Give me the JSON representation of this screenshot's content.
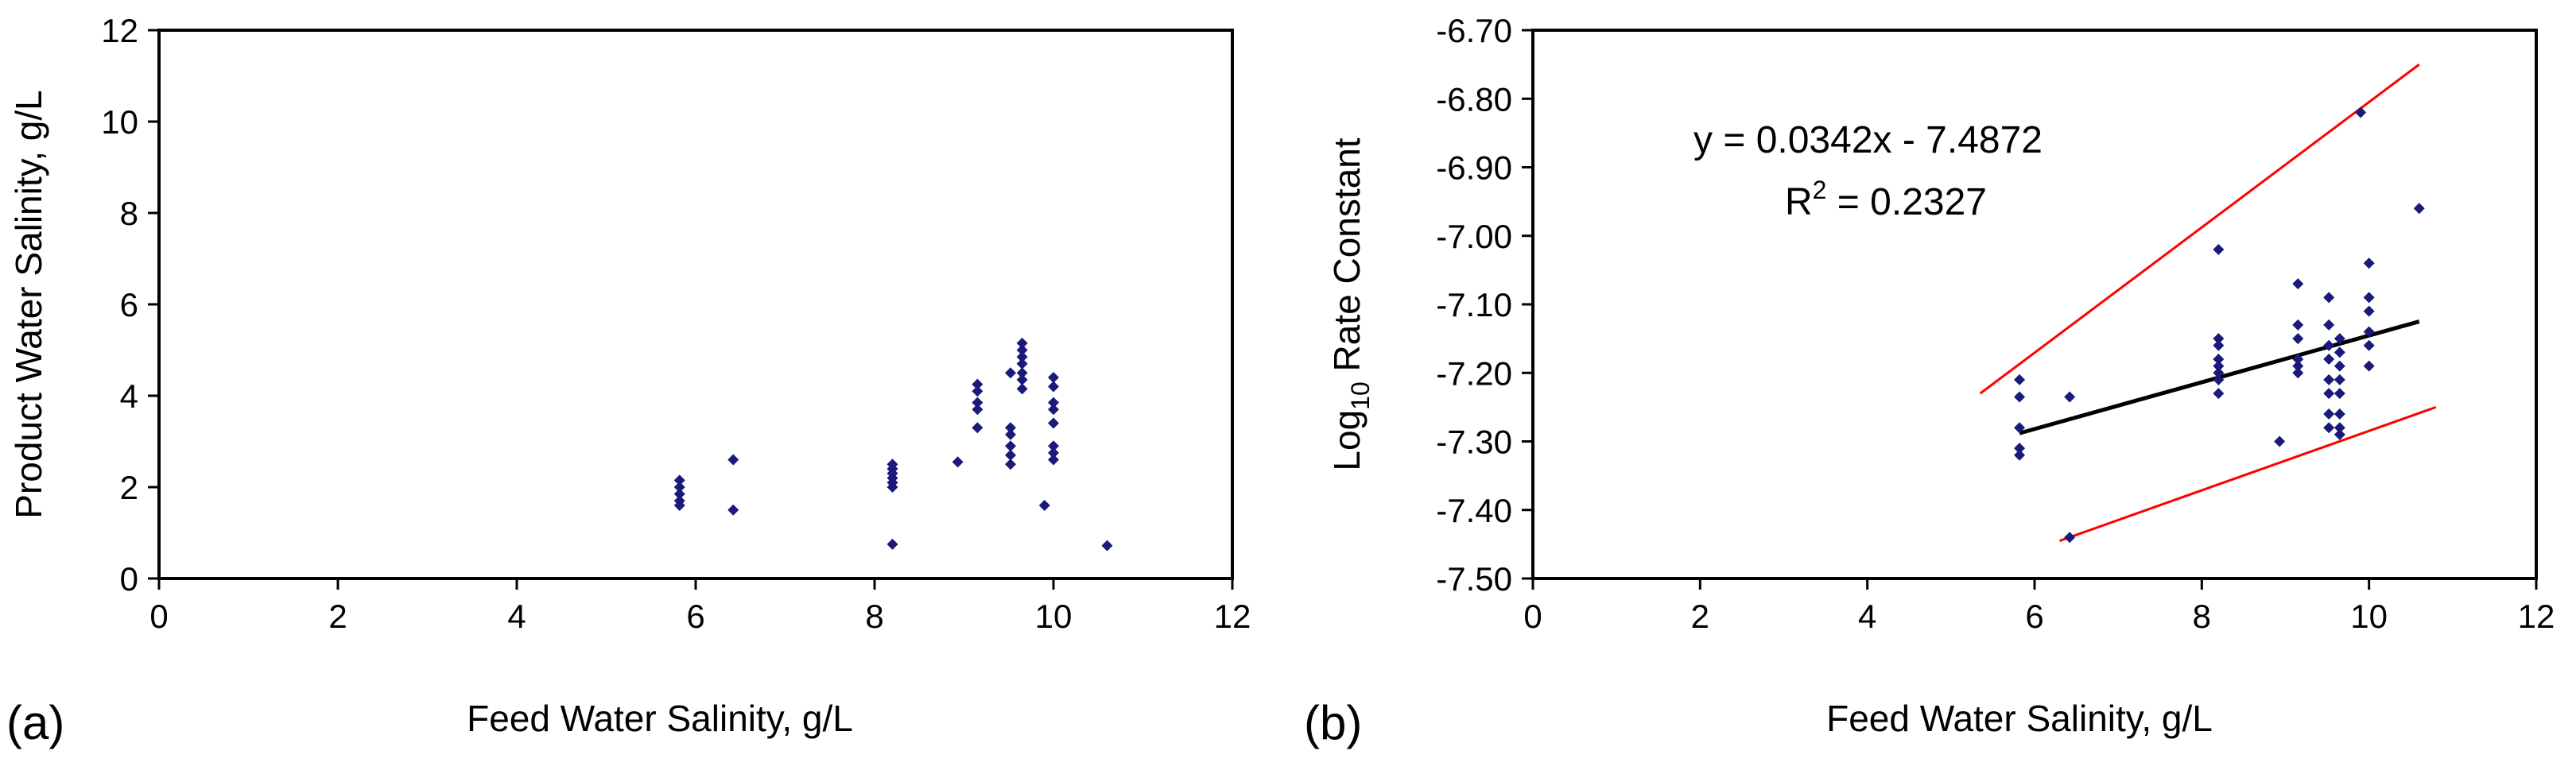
{
  "chart_data": [
    {
      "type": "scatter",
      "panel_label": "(a)",
      "title": "",
      "xlabel": "Feed Water Salinity, g/L",
      "ylabel": "Product Water Salinity, g/L",
      "xlim": [
        0,
        12
      ],
      "ylim": [
        0,
        12
      ],
      "xticks": [
        0,
        2,
        4,
        6,
        8,
        10,
        12
      ],
      "yticks": [
        0,
        2,
        4,
        6,
        8,
        10,
        12
      ],
      "xtick_labels": [
        "0",
        "2",
        "4",
        "6",
        "8",
        "10",
        "12"
      ],
      "ytick_labels": [
        "0",
        "2",
        "4",
        "6",
        "8",
        "10",
        "12"
      ],
      "grid": false,
      "marker_color": "#1a1a7a",
      "series": [
        {
          "points": [
            [
              5.82,
              2.15
            ],
            [
              5.82,
              2.0
            ],
            [
              5.82,
              1.85
            ],
            [
              5.82,
              1.7
            ],
            [
              5.82,
              1.6
            ],
            [
              6.42,
              2.6
            ],
            [
              6.42,
              1.5
            ],
            [
              8.2,
              2.5
            ],
            [
              8.2,
              2.4
            ],
            [
              8.2,
              2.3
            ],
            [
              8.2,
              2.2
            ],
            [
              8.2,
              2.1
            ],
            [
              8.2,
              2.0
            ],
            [
              8.2,
              0.75
            ],
            [
              8.93,
              2.55
            ],
            [
              9.15,
              4.25
            ],
            [
              9.15,
              4.1
            ],
            [
              9.15,
              3.85
            ],
            [
              9.15,
              3.7
            ],
            [
              9.15,
              3.3
            ],
            [
              9.52,
              4.5
            ],
            [
              9.52,
              3.3
            ],
            [
              9.52,
              3.15
            ],
            [
              9.52,
              2.9
            ],
            [
              9.52,
              2.7
            ],
            [
              9.52,
              2.5
            ],
            [
              9.65,
              5.15
            ],
            [
              9.65,
              5.0
            ],
            [
              9.65,
              4.85
            ],
            [
              9.65,
              4.7
            ],
            [
              9.65,
              4.5
            ],
            [
              9.65,
              4.35
            ],
            [
              9.65,
              4.15
            ],
            [
              9.9,
              1.6
            ],
            [
              10.0,
              4.4
            ],
            [
              10.0,
              4.2
            ],
            [
              10.0,
              3.85
            ],
            [
              10.0,
              3.7
            ],
            [
              10.0,
              3.4
            ],
            [
              10.0,
              2.9
            ],
            [
              10.0,
              2.75
            ],
            [
              10.0,
              2.6
            ],
            [
              10.6,
              0.72
            ]
          ]
        }
      ]
    },
    {
      "type": "scatter",
      "panel_label": "(b)",
      "title": "",
      "xlabel": "Feed Water Salinity, g/L",
      "ylabel_main": "Log",
      "ylabel_sub": "10",
      "ylabel_rest": " Rate Constant",
      "xlim": [
        0,
        12
      ],
      "ylim": [
        -7.5,
        -6.7
      ],
      "xticks": [
        0,
        2,
        4,
        6,
        8,
        10,
        12
      ],
      "yticks": [
        -7.5,
        -7.4,
        -7.3,
        -7.2,
        -7.1,
        -7.0,
        -6.9,
        -6.8,
        -6.7
      ],
      "xtick_labels": [
        "0",
        "2",
        "4",
        "6",
        "8",
        "10",
        "12"
      ],
      "ytick_labels": [
        "-7.50",
        "-7.40",
        "-7.30",
        "-7.20",
        "-7.10",
        "-7.00",
        "-6.90",
        "-6.80",
        "-6.70"
      ],
      "grid": false,
      "marker_color": "#1a1a7a",
      "equation_text": "y = 0.0342x - 7.4872",
      "r2_prefix": "R",
      "r2_sup": "2",
      "r2_suffix": " = 0.2327",
      "trend_line": {
        "color": "#000000",
        "points": [
          [
            5.82,
            -7.288
          ],
          [
            10.6,
            -7.125
          ]
        ]
      },
      "band_lines": [
        {
          "color": "#ff0000",
          "points": [
            [
              5.35,
              -7.23
            ],
            [
              10.6,
              -6.75
            ]
          ]
        },
        {
          "color": "#ff0000",
          "points": [
            [
              6.3,
              -7.445
            ],
            [
              10.8,
              -7.25
            ]
          ]
        }
      ],
      "series": [
        {
          "points": [
            [
              5.82,
              -7.21
            ],
            [
              5.82,
              -7.235
            ],
            [
              5.82,
              -7.28
            ],
            [
              5.82,
              -7.31
            ],
            [
              5.82,
              -7.32
            ],
            [
              6.42,
              -7.235
            ],
            [
              6.42,
              -7.44
            ],
            [
              8.2,
              -7.02
            ],
            [
              8.2,
              -7.15
            ],
            [
              8.2,
              -7.16
            ],
            [
              8.2,
              -7.18
            ],
            [
              8.2,
              -7.19
            ],
            [
              8.2,
              -7.2
            ],
            [
              8.2,
              -7.21
            ],
            [
              8.2,
              -7.23
            ],
            [
              8.93,
              -7.3
            ],
            [
              9.15,
              -7.07
            ],
            [
              9.15,
              -7.13
            ],
            [
              9.15,
              -7.15
            ],
            [
              9.15,
              -7.18
            ],
            [
              9.15,
              -7.19
            ],
            [
              9.15,
              -7.2
            ],
            [
              9.52,
              -7.09
            ],
            [
              9.52,
              -7.13
            ],
            [
              9.52,
              -7.16
            ],
            [
              9.52,
              -7.18
            ],
            [
              9.52,
              -7.21
            ],
            [
              9.52,
              -7.23
            ],
            [
              9.52,
              -7.26
            ],
            [
              9.52,
              -7.28
            ],
            [
              9.65,
              -7.15
            ],
            [
              9.65,
              -7.17
            ],
            [
              9.65,
              -7.19
            ],
            [
              9.65,
              -7.21
            ],
            [
              9.65,
              -7.23
            ],
            [
              9.65,
              -7.26
            ],
            [
              9.65,
              -7.28
            ],
            [
              9.65,
              -7.29
            ],
            [
              9.9,
              -6.82
            ],
            [
              10.0,
              -7.04
            ],
            [
              10.0,
              -7.09
            ],
            [
              10.0,
              -7.11
            ],
            [
              10.0,
              -7.14
            ],
            [
              10.0,
              -7.16
            ],
            [
              10.0,
              -7.19
            ],
            [
              10.6,
              -6.96
            ]
          ]
        }
      ]
    }
  ]
}
